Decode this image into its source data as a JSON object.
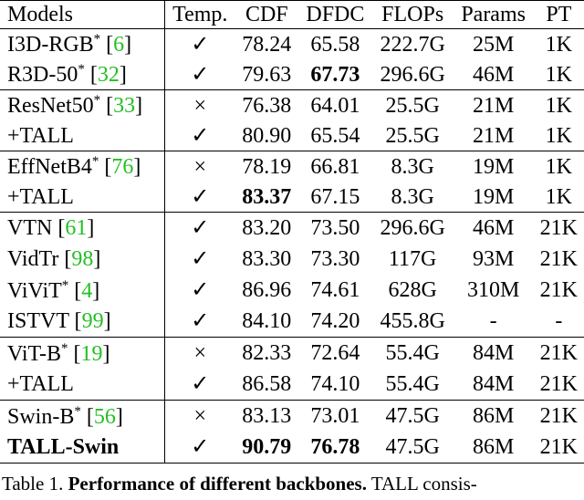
{
  "table": {
    "headers": [
      "Models",
      "Temp.",
      "CDF",
      "DFDC",
      "FLOPs",
      "Params",
      "PT"
    ],
    "sections": [
      [
        [
          {
            "model": [
              {
                "t": "I3D-RGB"
              },
              {
                "t": "*",
                "k": "sup"
              },
              {
                "t": " ["
              },
              {
                "t": "6",
                "k": "cite"
              },
              {
                "t": "]"
              }
            ],
            "cells": [
              "✓",
              "78.24",
              "65.58",
              "222.7G",
              "25M",
              "1K"
            ],
            "bold": []
          },
          {
            "model": [
              {
                "t": "R3D-50"
              },
              {
                "t": "*",
                "k": "sup"
              },
              {
                "t": " ["
              },
              {
                "t": "32",
                "k": "cite"
              },
              {
                "t": "]"
              }
            ],
            "cells": [
              "✓",
              "79.63",
              "67.73",
              "296.6G",
              "46M",
              "1K"
            ],
            "bold": [
              2
            ]
          }
        ],
        [
          {
            "model": [
              {
                "t": "ResNet50"
              },
              {
                "t": "*",
                "k": "sup"
              },
              {
                "t": " ["
              },
              {
                "t": "33",
                "k": "cite"
              },
              {
                "t": "]"
              }
            ],
            "cells": [
              "×",
              "76.38",
              "64.01",
              "25.5G",
              "21M",
              "1K"
            ],
            "bold": []
          },
          {
            "model": [
              {
                "t": "+TALL"
              }
            ],
            "cells": [
              "✓",
              "80.90",
              "65.54",
              "25.5G",
              "21M",
              "1K"
            ],
            "bold": []
          }
        ],
        [
          {
            "model": [
              {
                "t": "EffNetB4"
              },
              {
                "t": "*",
                "k": "sup"
              },
              {
                "t": " ["
              },
              {
                "t": "76",
                "k": "cite"
              },
              {
                "t": "]"
              }
            ],
            "cells": [
              "×",
              "78.19",
              "66.81",
              "8.3G",
              "19M",
              "1K"
            ],
            "bold": []
          },
          {
            "model": [
              {
                "t": "+TALL"
              }
            ],
            "cells": [
              "✓",
              "83.37",
              "67.15",
              "8.3G",
              "19M",
              "1K"
            ],
            "bold": [
              1
            ]
          }
        ]
      ],
      [
        [
          {
            "model": [
              {
                "t": "VTN ["
              },
              {
                "t": "61",
                "k": "cite"
              },
              {
                "t": "]"
              }
            ],
            "cells": [
              "✓",
              "83.20",
              "73.50",
              "296.6G",
              "46M",
              "21K"
            ],
            "bold": []
          },
          {
            "model": [
              {
                "t": "VidTr ["
              },
              {
                "t": "98",
                "k": "cite"
              },
              {
                "t": "]"
              }
            ],
            "cells": [
              "✓",
              "83.30",
              "73.30",
              "117G",
              "93M",
              "21K"
            ],
            "bold": []
          },
          {
            "model": [
              {
                "t": "ViViT"
              },
              {
                "t": "*",
                "k": "sup"
              },
              {
                "t": " ["
              },
              {
                "t": "4",
                "k": "cite"
              },
              {
                "t": "]"
              }
            ],
            "cells": [
              "✓",
              "86.96",
              "74.61",
              "628G",
              "310M",
              "21K"
            ],
            "bold": []
          },
          {
            "model": [
              {
                "t": "ISTVT ["
              },
              {
                "t": "99",
                "k": "cite"
              },
              {
                "t": "]"
              }
            ],
            "cells": [
              "✓",
              "84.10",
              "74.20",
              "455.8G",
              "-",
              "-"
            ],
            "bold": []
          }
        ],
        [
          {
            "model": [
              {
                "t": "ViT-B"
              },
              {
                "t": "*",
                "k": "sup"
              },
              {
                "t": " ["
              },
              {
                "t": "19",
                "k": "cite"
              },
              {
                "t": "]"
              }
            ],
            "cells": [
              "×",
              "82.33",
              "72.64",
              "55.4G",
              "84M",
              "21K"
            ],
            "bold": []
          },
          {
            "model": [
              {
                "t": "+TALL"
              }
            ],
            "cells": [
              "✓",
              "86.58",
              "74.10",
              "55.4G",
              "84M",
              "21K"
            ],
            "bold": []
          }
        ],
        [
          {
            "model": [
              {
                "t": "Swin-B"
              },
              {
                "t": "*",
                "k": "sup"
              },
              {
                "t": " ["
              },
              {
                "t": "56",
                "k": "cite"
              },
              {
                "t": "]"
              }
            ],
            "cells": [
              "×",
              "83.13",
              "73.01",
              "47.5G",
              "86M",
              "21K"
            ],
            "bold": []
          },
          {
            "model": [
              {
                "t": "TALL-Swin",
                "k": "b"
              }
            ],
            "cells": [
              "✓",
              "90.79",
              "76.78",
              "47.5G",
              "86M",
              "21K"
            ],
            "bold": [
              1,
              2
            ]
          }
        ]
      ]
    ],
    "caption": [
      {
        "t": "Table 1. "
      },
      {
        "t": "Performance of different backbones.",
        "k": "b"
      },
      {
        "t": "  TALL consis-"
      }
    ]
  }
}
